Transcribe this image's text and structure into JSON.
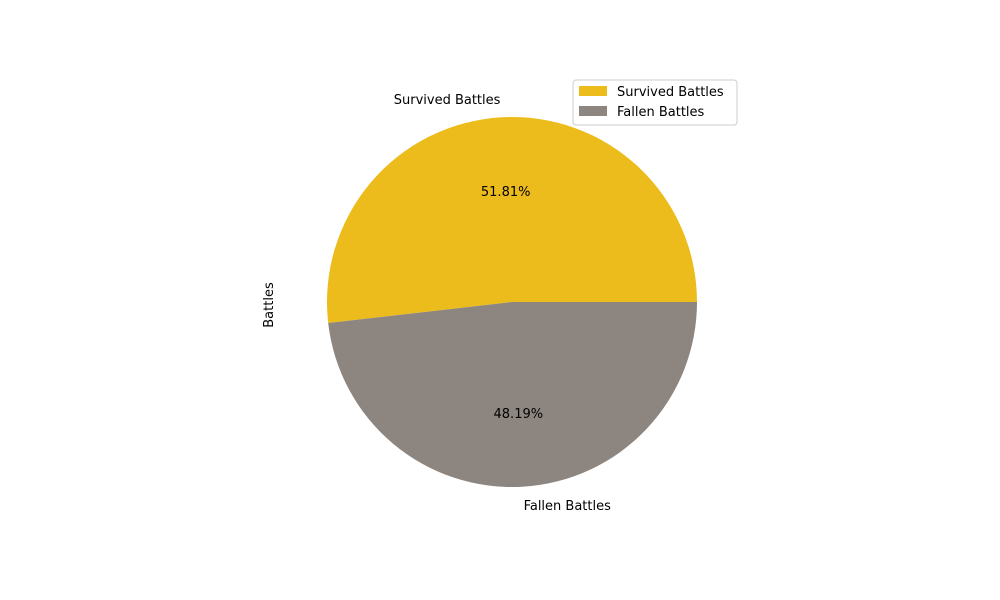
{
  "chart_data": {
    "type": "pie",
    "ylabel": "Battles",
    "slices": [
      {
        "label": "Survived Battles",
        "percent": 51.81,
        "percent_label": "51.81%",
        "color": "#ecbc1c"
      },
      {
        "label": "Fallen Battles",
        "percent": 48.19,
        "percent_label": "48.19%",
        "color": "#8c8580"
      }
    ],
    "start_angle_deg": 0,
    "direction": "counterclockwise",
    "legend": {
      "placement": "top-right",
      "entries": [
        "Survived Battles",
        "Fallen Battles"
      ]
    }
  }
}
